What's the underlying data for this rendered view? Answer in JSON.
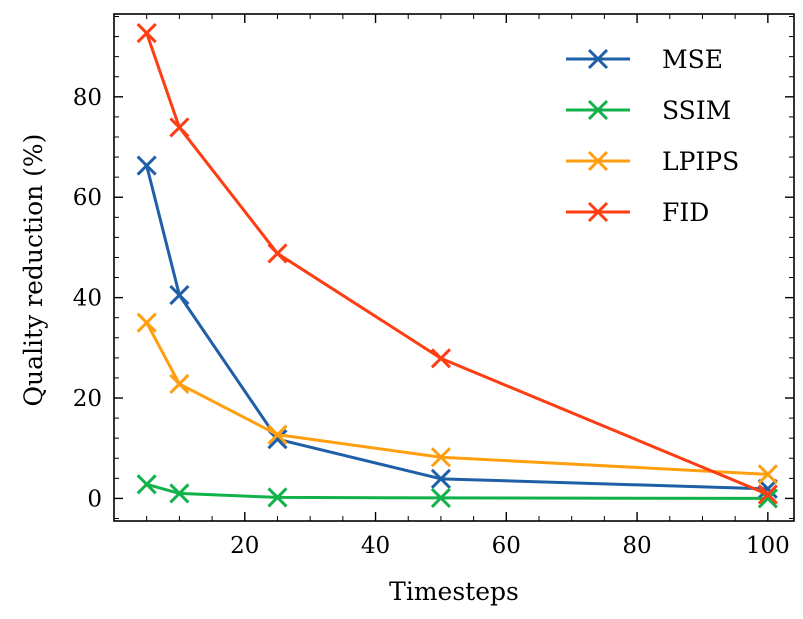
{
  "chart_data": {
    "type": "line",
    "xlabel": "Timesteps",
    "ylabel": "Quality reduction (%)",
    "xlim": [
      0,
      104
    ],
    "ylim": [
      -4.5,
      96.5
    ],
    "xticks": [
      20,
      40,
      60,
      80,
      100
    ],
    "yticks": [
      0,
      20,
      40,
      60,
      80
    ],
    "marker": "x",
    "legend_position": "top-right",
    "x": [
      5,
      10,
      25,
      50,
      100
    ],
    "series": [
      {
        "name": "MSE",
        "color": "#1f5fa8",
        "values": [
          66.3,
          40.5,
          11.8,
          3.9,
          1.9
        ]
      },
      {
        "name": "SSIM",
        "color": "#12b24a",
        "values": [
          2.8,
          1.0,
          0.2,
          0.1,
          0.0
        ]
      },
      {
        "name": "LPIPS",
        "color": "#ff9f0f",
        "values": [
          35.0,
          22.8,
          12.7,
          8.2,
          4.8
        ]
      },
      {
        "name": "FID",
        "color": "#ff3d12",
        "values": [
          92.7,
          73.9,
          48.8,
          27.9,
          0.8
        ]
      }
    ]
  }
}
